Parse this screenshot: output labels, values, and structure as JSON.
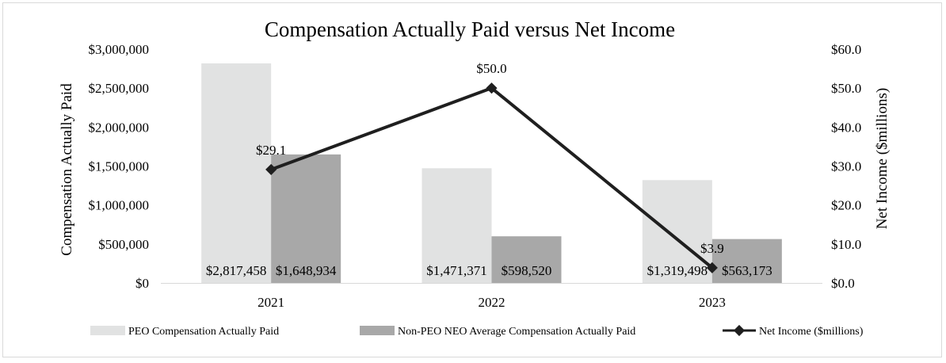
{
  "chart_data": {
    "type": "bar",
    "title": "Compensation Actually Paid versus Net Income",
    "categories": [
      "2021",
      "2022",
      "2023"
    ],
    "ylabel": "Compensation Actually Paid",
    "y2label": "Net Income ($millions)",
    "ylim": [
      0,
      3000000
    ],
    "y2lim": [
      0,
      60
    ],
    "yticks": [
      "$0",
      "$500,000",
      "$1,000,000",
      "$1,500,000",
      "$2,000,000",
      "$2,500,000",
      "$3,000,000"
    ],
    "y2ticks": [
      "$0.0",
      "$10.0",
      "$20.0",
      "$30.0",
      "$40.0",
      "$50.0",
      "$60.0"
    ],
    "grid": false,
    "legend_position": "bottom",
    "series": [
      {
        "name": "PEO Compensation Actually Paid",
        "kind": "bar",
        "axis": "left",
        "color": "#e1e2e2",
        "values": [
          2817458,
          1471371,
          1319498
        ],
        "labels": [
          "$2,817,458",
          "$1,471,371",
          "$1,319,498"
        ]
      },
      {
        "name": "Non-PEO NEO Average Compensation Actually Paid",
        "kind": "bar",
        "axis": "left",
        "color": "#a8a8a8",
        "values": [
          1648934,
          598520,
          563173
        ],
        "labels": [
          "$1,648,934",
          "$598,520",
          "$563,173"
        ]
      },
      {
        "name": "Net Income ($millions)",
        "kind": "line",
        "axis": "right",
        "color": "#1f1f1f",
        "values": [
          29.1,
          50.0,
          3.9
        ],
        "labels": [
          "$29.1",
          "$50.0",
          "$3.9"
        ]
      }
    ]
  }
}
